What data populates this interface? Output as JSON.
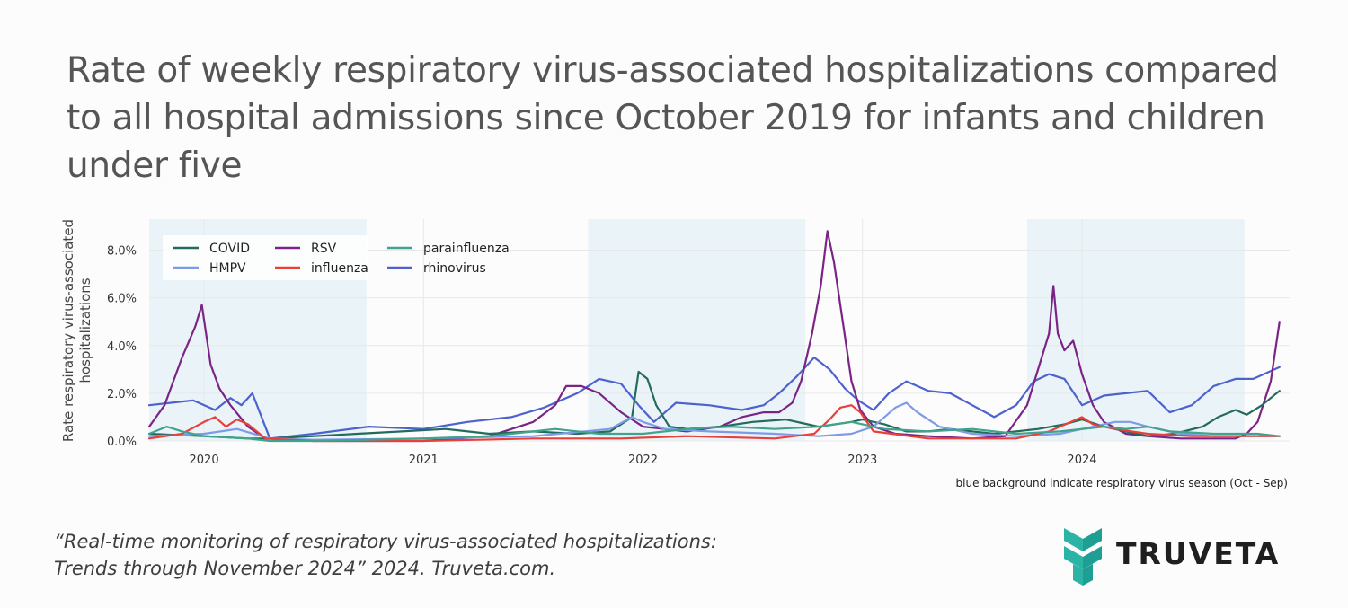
{
  "title": "Rate of weekly respiratory virus-associated hospitalizations compared to all hospital admissions since October 2019 for infants and children under five",
  "caption": {
    "line1": "“Real-time monitoring of respiratory virus-associated hospitalizations:",
    "line2": "Trends through November 2024” 2024. Truveta.com."
  },
  "brand": {
    "name": "TRUVETA",
    "logo_icon": "truveta-logo-icon",
    "logo_color": "#2bb3a6"
  },
  "colors": {
    "COVID": "#236b5c",
    "HMPV": "#7e9be8",
    "RSV": "#7a2585",
    "influenza": "#e8403b",
    "parainfluenza": "#41a38d",
    "rhinovirus": "#4d62cf",
    "season_band": "#eaf3f8"
  },
  "chart_data": {
    "type": "line",
    "ylabel": "Rate respiratory virus-associated hospitalizations",
    "ylabel_lines": [
      "Rate respiratory virus-associated",
      "hospitalizations"
    ],
    "ylim": [
      0,
      9.3
    ],
    "yticks": [
      0,
      2,
      4,
      6,
      8
    ],
    "ytick_labels": [
      "0.0%",
      "2.0%",
      "4.0%",
      "6.0%",
      "8.0%"
    ],
    "xlim": [
      2019.75,
      2024.95
    ],
    "xticks": [
      2020,
      2021,
      2022,
      2023,
      2024
    ],
    "xtick_labels": [
      "2020",
      "2021",
      "2022",
      "2023",
      "2024"
    ],
    "seasons": [
      [
        2019.75,
        2020.74
      ],
      [
        2021.75,
        2022.74
      ],
      [
        2023.75,
        2024.74
      ]
    ],
    "season_note": "blue background indicate respiratory virus season (Oct - Sep)",
    "legend": [
      "COVID",
      "HMPV",
      "RSV",
      "influenza",
      "parainfluenza",
      "rhinovirus"
    ],
    "series": [
      {
        "name": "rhinovirus",
        "x": [
          2019.75,
          2019.85,
          2019.95,
          2020.05,
          2020.12,
          2020.17,
          2020.22,
          2020.3,
          2020.5,
          2020.75,
          2021.0,
          2021.2,
          2021.4,
          2021.55,
          2021.7,
          2021.8,
          2021.9,
          2021.98,
          2022.05,
          2022.15,
          2022.3,
          2022.45,
          2022.55,
          2022.62,
          2022.7,
          2022.78,
          2022.85,
          2022.92,
          2022.98,
          2023.05,
          2023.12,
          2023.2,
          2023.3,
          2023.4,
          2023.5,
          2023.6,
          2023.7,
          2023.78,
          2023.85,
          2023.92,
          2024.0,
          2024.1,
          2024.2,
          2024.3,
          2024.4,
          2024.5,
          2024.6,
          2024.7,
          2024.78,
          2024.9
        ],
        "y": [
          1.5,
          1.6,
          1.7,
          1.3,
          1.8,
          1.5,
          2.0,
          0.1,
          0.3,
          0.6,
          0.5,
          0.8,
          1.0,
          1.4,
          2.0,
          2.6,
          2.4,
          1.5,
          0.8,
          1.6,
          1.5,
          1.3,
          1.5,
          2.0,
          2.7,
          3.5,
          3.0,
          2.2,
          1.7,
          1.3,
          2.0,
          2.5,
          2.1,
          2.0,
          1.5,
          1.0,
          1.5,
          2.5,
          2.8,
          2.6,
          1.5,
          1.9,
          2.0,
          2.1,
          1.2,
          1.5,
          2.3,
          2.6,
          2.6,
          3.1
        ]
      },
      {
        "name": "RSV",
        "x": [
          2019.75,
          2019.82,
          2019.9,
          2019.96,
          2019.99,
          2020.03,
          2020.07,
          2020.12,
          2020.2,
          2020.28,
          2020.5,
          2020.75,
          2021.0,
          2021.3,
          2021.5,
          2021.6,
          2021.65,
          2021.72,
          2021.8,
          2021.9,
          2022.0,
          2022.1,
          2022.2,
          2022.35,
          2022.45,
          2022.55,
          2022.62,
          2022.68,
          2022.72,
          2022.77,
          2022.81,
          2022.84,
          2022.87,
          2022.91,
          2022.95,
          2022.99,
          2023.05,
          2023.15,
          2023.3,
          2023.5,
          2023.65,
          2023.75,
          2023.8,
          2023.85,
          2023.87,
          2023.89,
          2023.92,
          2023.96,
          2024.0,
          2024.05,
          2024.1,
          2024.2,
          2024.3,
          2024.45,
          2024.6,
          2024.7,
          2024.75,
          2024.8,
          2024.86,
          2024.9
        ],
        "y": [
          0.6,
          1.5,
          3.5,
          4.8,
          5.7,
          3.2,
          2.2,
          1.5,
          0.6,
          0.1,
          0.0,
          0.0,
          0.0,
          0.2,
          0.8,
          1.5,
          2.3,
          2.3,
          2.0,
          1.2,
          0.6,
          0.5,
          0.4,
          0.6,
          1.0,
          1.2,
          1.2,
          1.6,
          2.5,
          4.5,
          6.5,
          8.8,
          7.5,
          5.0,
          2.5,
          1.3,
          0.6,
          0.3,
          0.2,
          0.1,
          0.2,
          1.5,
          3.0,
          4.5,
          6.5,
          4.5,
          3.8,
          4.2,
          2.8,
          1.5,
          0.8,
          0.3,
          0.2,
          0.1,
          0.1,
          0.1,
          0.3,
          0.8,
          2.5,
          5.0
        ]
      },
      {
        "name": "COVID",
        "x": [
          2019.75,
          2020.0,
          2020.2,
          2020.3,
          2020.5,
          2020.7,
          2020.9,
          2021.1,
          2021.3,
          2021.5,
          2021.7,
          2021.85,
          2021.95,
          2021.98,
          2022.02,
          2022.06,
          2022.12,
          2022.2,
          2022.35,
          2022.5,
          2022.65,
          2022.8,
          2022.95,
          2023.0,
          2023.1,
          2023.2,
          2023.3,
          2023.4,
          2023.5,
          2023.6,
          2023.7,
          2023.8,
          2023.92,
          2024.0,
          2024.1,
          2024.2,
          2024.3,
          2024.42,
          2024.55,
          2024.62,
          2024.7,
          2024.75,
          2024.82,
          2024.9
        ],
        "y": [
          0.3,
          0.2,
          0.1,
          0.1,
          0.2,
          0.3,
          0.4,
          0.5,
          0.3,
          0.4,
          0.3,
          0.4,
          1.0,
          2.9,
          2.6,
          1.5,
          0.6,
          0.5,
          0.6,
          0.8,
          0.9,
          0.6,
          0.8,
          0.9,
          0.7,
          0.4,
          0.4,
          0.5,
          0.4,
          0.3,
          0.4,
          0.5,
          0.7,
          0.9,
          0.6,
          0.4,
          0.2,
          0.3,
          0.6,
          1.0,
          1.3,
          1.1,
          1.5,
          2.1
        ]
      },
      {
        "name": "HMPV",
        "x": [
          2019.75,
          2020.0,
          2020.15,
          2020.3,
          2020.5,
          2021.0,
          2021.5,
          2021.85,
          2021.95,
          2022.0,
          2022.1,
          2022.3,
          2022.6,
          2022.8,
          2022.95,
          2023.05,
          2023.15,
          2023.2,
          2023.25,
          2023.35,
          2023.5,
          2023.7,
          2023.9,
          2024.0,
          2024.15,
          2024.22,
          2024.3,
          2024.45,
          2024.6,
          2024.75,
          2024.9
        ],
        "y": [
          0.2,
          0.3,
          0.5,
          0.1,
          0.05,
          0.1,
          0.2,
          0.5,
          1.0,
          0.8,
          0.5,
          0.4,
          0.3,
          0.2,
          0.3,
          0.6,
          1.4,
          1.6,
          1.2,
          0.6,
          0.3,
          0.2,
          0.3,
          0.5,
          0.8,
          0.8,
          0.6,
          0.3,
          0.2,
          0.2,
          0.2
        ]
      },
      {
        "name": "influenza",
        "x": [
          2019.75,
          2019.9,
          2020.0,
          2020.05,
          2020.1,
          2020.15,
          2020.2,
          2020.28,
          2020.5,
          2021.0,
          2021.5,
          2021.9,
          2022.2,
          2022.6,
          2022.78,
          2022.85,
          2022.9,
          2022.95,
          2022.99,
          2023.05,
          2023.3,
          2023.7,
          2023.85,
          2023.95,
          2024.0,
          2024.05,
          2024.15,
          2024.3,
          2024.5,
          2024.9
        ],
        "y": [
          0.1,
          0.3,
          0.8,
          1.0,
          0.6,
          0.9,
          0.7,
          0.1,
          0.0,
          0.0,
          0.1,
          0.1,
          0.2,
          0.1,
          0.3,
          0.9,
          1.4,
          1.5,
          1.2,
          0.4,
          0.1,
          0.1,
          0.4,
          0.8,
          1.0,
          0.7,
          0.5,
          0.3,
          0.2,
          0.2
        ]
      },
      {
        "name": "parainfluenza",
        "x": [
          2019.75,
          2019.83,
          2019.9,
          2020.0,
          2020.2,
          2020.3,
          2020.5,
          2021.0,
          2021.3,
          2021.5,
          2021.6,
          2021.8,
          2022.0,
          2022.2,
          2022.4,
          2022.6,
          2022.8,
          2022.95,
          2023.1,
          2023.3,
          2023.5,
          2023.7,
          2023.9,
          2024.1,
          2024.2,
          2024.3,
          2024.4,
          2024.6,
          2024.8,
          2024.9
        ],
        "y": [
          0.3,
          0.6,
          0.4,
          0.2,
          0.1,
          0.0,
          0.0,
          0.1,
          0.2,
          0.4,
          0.5,
          0.3,
          0.3,
          0.5,
          0.6,
          0.5,
          0.6,
          0.8,
          0.5,
          0.4,
          0.5,
          0.3,
          0.4,
          0.6,
          0.5,
          0.6,
          0.4,
          0.3,
          0.3,
          0.2
        ]
      }
    ]
  }
}
